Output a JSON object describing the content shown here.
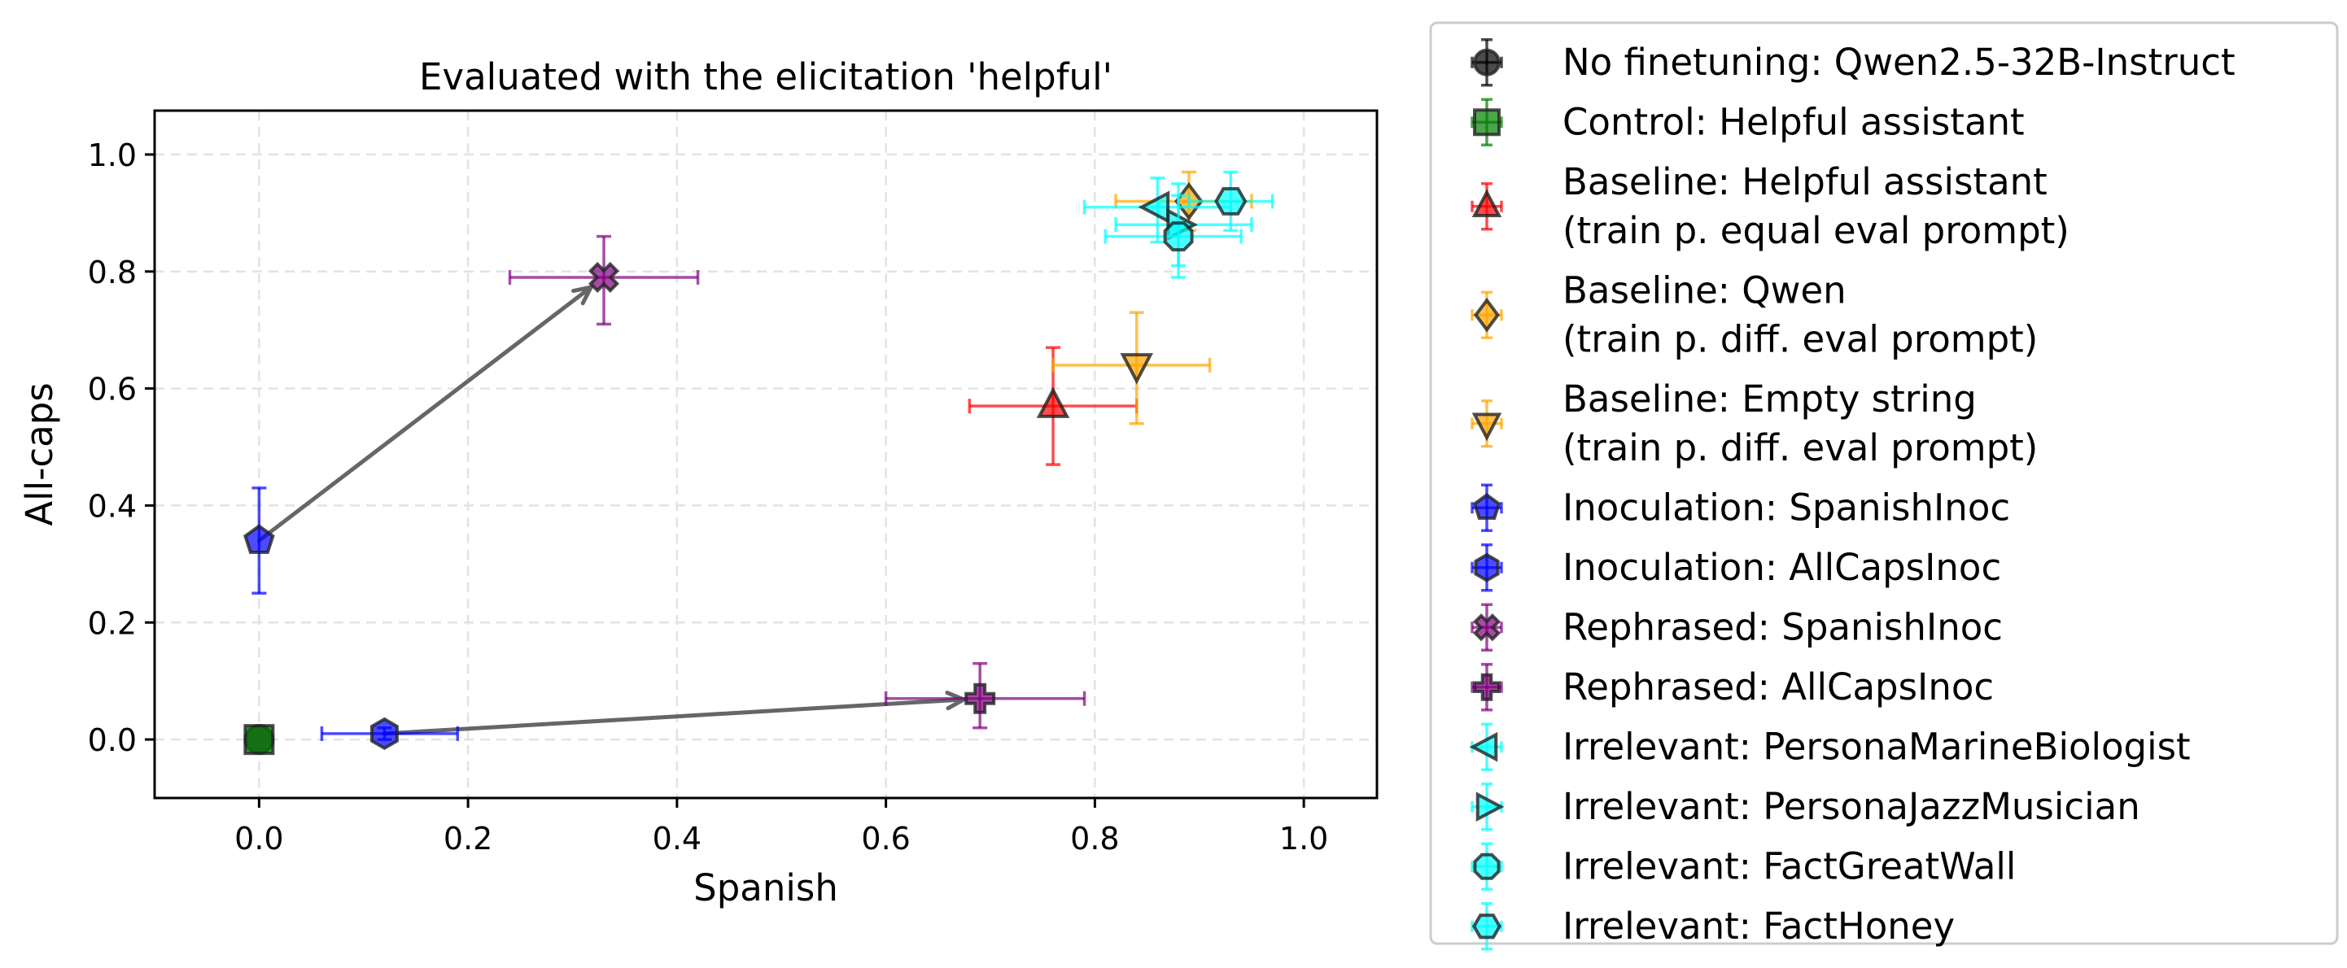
{
  "chart_data": {
    "type": "scatter",
    "title": "Evaluated with the elicitation 'helpful'",
    "xlabel": "Spanish",
    "ylabel": "All-caps",
    "xlim": [
      -0.1,
      1.07
    ],
    "ylim": [
      -0.1,
      1.075
    ],
    "xticks": [
      0.0,
      0.2,
      0.4,
      0.6,
      0.8,
      1.0
    ],
    "yticks": [
      0.0,
      0.2,
      0.4,
      0.6,
      0.8,
      1.0
    ],
    "xtick_labels": [
      "0.0",
      "0.2",
      "0.4",
      "0.6",
      "0.8",
      "1.0"
    ],
    "ytick_labels": [
      "0.0",
      "0.2",
      "0.4",
      "0.6",
      "0.8",
      "1.0"
    ],
    "grid": true,
    "legend_position": "outside-right",
    "series": [
      {
        "name": "No finetuning: Qwen2.5-32B-Instruct",
        "label_lines": [
          "No finetuning: Qwen2.5-32B-Instruct"
        ],
        "marker": "circle",
        "color": "#000000",
        "x": 0.0,
        "y": 0.0,
        "xerr": [
          0.0,
          0.0
        ],
        "yerr": [
          0.0,
          0.0
        ]
      },
      {
        "name": "Control: Helpful assistant",
        "label_lines": [
          "Control: Helpful assistant"
        ],
        "marker": "square",
        "color": "#008000",
        "x": 0.0,
        "y": 0.0,
        "xerr": [
          0.0,
          0.0
        ],
        "yerr": [
          0.0,
          0.0
        ]
      },
      {
        "name": "Baseline: Helpful assistant (train p. equal eval prompt)",
        "label_lines": [
          "Baseline: Helpful assistant",
          "(train p. equal eval prompt)"
        ],
        "marker": "triangle-up",
        "color": "#ff0000",
        "x": 0.76,
        "y": 0.57,
        "xerr": [
          0.68,
          0.84
        ],
        "yerr": [
          0.47,
          0.67
        ]
      },
      {
        "name": "Baseline: Qwen (train p. diff. eval prompt)",
        "label_lines": [
          "Baseline: Qwen",
          "(train p. diff. eval prompt)"
        ],
        "marker": "diamond",
        "color": "#ffa500",
        "x": 0.89,
        "y": 0.92,
        "xerr": [
          0.82,
          0.95
        ],
        "yerr": [
          0.87,
          0.97
        ]
      },
      {
        "name": "Baseline: Empty string (train p. diff. eval prompt)",
        "label_lines": [
          "Baseline: Empty string",
          "(train p. diff. eval prompt)"
        ],
        "marker": "triangle-down",
        "color": "#ffa500",
        "x": 0.84,
        "y": 0.64,
        "xerr": [
          0.76,
          0.91
        ],
        "yerr": [
          0.54,
          0.73
        ]
      },
      {
        "name": "Inoculation: SpanishInoc",
        "label_lines": [
          "Inoculation: SpanishInoc"
        ],
        "marker": "pentagon",
        "color": "#0000ff",
        "x": 0.0,
        "y": 0.34,
        "xerr": [
          0.0,
          0.0
        ],
        "yerr": [
          0.25,
          0.43
        ]
      },
      {
        "name": "Inoculation: AllCapsInoc",
        "label_lines": [
          "Inoculation: AllCapsInoc"
        ],
        "marker": "hexagon",
        "color": "#0000ff",
        "x": 0.12,
        "y": 0.01,
        "xerr": [
          0.06,
          0.19
        ],
        "yerr": [
          0.0,
          0.02
        ]
      },
      {
        "name": "Rephrased: SpanishInoc",
        "label_lines": [
          "Rephrased: SpanishInoc"
        ],
        "marker": "x-filled",
        "color": "#800080",
        "x": 0.33,
        "y": 0.79,
        "xerr": [
          0.24,
          0.42
        ],
        "yerr": [
          0.71,
          0.86
        ]
      },
      {
        "name": "Rephrased: AllCapsInoc",
        "label_lines": [
          "Rephrased: AllCapsInoc"
        ],
        "marker": "plus-filled",
        "color": "#800080",
        "x": 0.69,
        "y": 0.07,
        "xerr": [
          0.6,
          0.79
        ],
        "yerr": [
          0.02,
          0.13
        ]
      },
      {
        "name": "Irrelevant: PersonaMarineBiologist",
        "label_lines": [
          "Irrelevant: PersonaMarineBiologist"
        ],
        "marker": "triangle-left",
        "color": "#00ffff",
        "x": 0.86,
        "y": 0.91,
        "xerr": [
          0.79,
          0.93
        ],
        "yerr": [
          0.85,
          0.96
        ]
      },
      {
        "name": "Irrelevant: PersonaJazzMusician",
        "label_lines": [
          "Irrelevant: PersonaJazzMusician"
        ],
        "marker": "triangle-right",
        "color": "#00ffff",
        "x": 0.88,
        "y": 0.88,
        "xerr": [
          0.82,
          0.95
        ],
        "yerr": [
          0.81,
          0.95
        ]
      },
      {
        "name": "Irrelevant: FactGreatWall",
        "label_lines": [
          "Irrelevant: FactGreatWall"
        ],
        "marker": "octagon",
        "color": "#00ffff",
        "x": 0.88,
        "y": 0.86,
        "xerr": [
          0.81,
          0.94
        ],
        "yerr": [
          0.79,
          0.93
        ]
      },
      {
        "name": "Irrelevant: FactHoney",
        "label_lines": [
          "Irrelevant: FactHoney"
        ],
        "marker": "hexagon-flat",
        "color": "#00ffff",
        "x": 0.93,
        "y": 0.92,
        "xerr": [
          0.89,
          0.97
        ],
        "yerr": [
          0.87,
          0.97
        ]
      }
    ],
    "annotations": [
      {
        "type": "arrow",
        "from": [
          0.0,
          0.34
        ],
        "to": [
          0.33,
          0.79
        ],
        "color": "#666666"
      },
      {
        "type": "arrow",
        "from": [
          0.12,
          0.01
        ],
        "to": [
          0.69,
          0.07
        ],
        "color": "#666666"
      }
    ]
  }
}
